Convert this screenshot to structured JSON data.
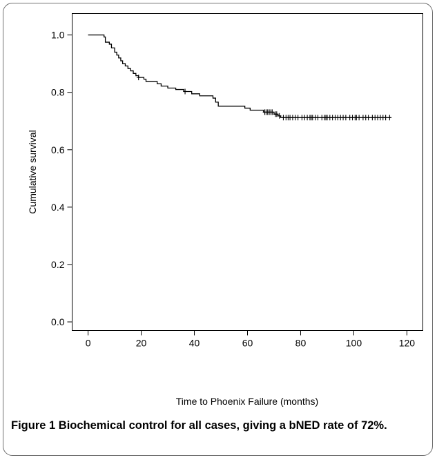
{
  "chart_data": {
    "type": "line",
    "xlabel": "Time to Phoenix Failure (months)",
    "ylabel": "Cumulative survival",
    "xlim": [
      -6,
      126
    ],
    "ylim": [
      -0.03,
      1.075
    ],
    "x_ticks": [
      0,
      20,
      40,
      60,
      80,
      100,
      120
    ],
    "y_ticks": [
      0.0,
      0.2,
      0.4,
      0.6,
      0.8,
      1.0
    ],
    "x_tick_labels": [
      "0",
      "20",
      "40",
      "60",
      "80",
      "100",
      "120"
    ],
    "y_tick_labels": [
      "0.0",
      "0.2",
      "0.4",
      "0.6",
      "0.8",
      "1.0"
    ],
    "grid": false,
    "series": [
      {
        "step": [
          [
            0,
            1.0
          ],
          [
            6,
            0.993
          ],
          [
            6.5,
            0.975
          ],
          [
            8,
            0.968
          ],
          [
            8.8,
            0.955
          ],
          [
            10,
            0.94
          ],
          [
            10.8,
            0.93
          ],
          [
            11.5,
            0.92
          ],
          [
            12.3,
            0.91
          ],
          [
            13,
            0.9
          ],
          [
            14,
            0.892
          ],
          [
            15,
            0.883
          ],
          [
            16,
            0.875
          ],
          [
            17,
            0.866
          ],
          [
            18,
            0.858
          ],
          [
            19,
            0.852
          ],
          [
            21,
            0.846
          ],
          [
            21.8,
            0.838
          ],
          [
            26,
            0.83
          ],
          [
            27.5,
            0.822
          ],
          [
            30,
            0.815
          ],
          [
            33,
            0.81
          ],
          [
            36,
            0.803
          ],
          [
            39,
            0.795
          ],
          [
            42,
            0.788
          ],
          [
            47,
            0.78
          ],
          [
            48,
            0.766
          ],
          [
            49,
            0.752
          ],
          [
            59,
            0.745
          ],
          [
            61,
            0.738
          ],
          [
            66,
            0.731
          ],
          [
            70,
            0.724
          ],
          [
            71.5,
            0.718
          ],
          [
            72.5,
            0.712
          ],
          [
            114,
            0.712
          ]
        ],
        "censored": [
          [
            19,
            0.852
          ],
          [
            36.5,
            0.803
          ],
          [
            66.5,
            0.731
          ],
          [
            67,
            0.731
          ],
          [
            67.6,
            0.731
          ],
          [
            68.2,
            0.731
          ],
          [
            68.8,
            0.731
          ],
          [
            69.3,
            0.731
          ],
          [
            70.5,
            0.724
          ],
          [
            71,
            0.724
          ],
          [
            72,
            0.718
          ],
          [
            73.5,
            0.712
          ],
          [
            74.5,
            0.712
          ],
          [
            75.3,
            0.712
          ],
          [
            76,
            0.712
          ],
          [
            77,
            0.712
          ],
          [
            78,
            0.712
          ],
          [
            79,
            0.712
          ],
          [
            80.5,
            0.712
          ],
          [
            81.5,
            0.712
          ],
          [
            82.5,
            0.712
          ],
          [
            83.5,
            0.712
          ],
          [
            84,
            0.712
          ],
          [
            84.5,
            0.712
          ],
          [
            85.5,
            0.712
          ],
          [
            86.5,
            0.712
          ],
          [
            88,
            0.712
          ],
          [
            89,
            0.712
          ],
          [
            89.5,
            0.712
          ],
          [
            90,
            0.712
          ],
          [
            91,
            0.712
          ],
          [
            92,
            0.712
          ],
          [
            93,
            0.712
          ],
          [
            94,
            0.712
          ],
          [
            95,
            0.712
          ],
          [
            96,
            0.712
          ],
          [
            97,
            0.712
          ],
          [
            98.5,
            0.712
          ],
          [
            99.5,
            0.712
          ],
          [
            100.5,
            0.712
          ],
          [
            101,
            0.712
          ],
          [
            102,
            0.712
          ],
          [
            103.5,
            0.712
          ],
          [
            104.5,
            0.712
          ],
          [
            105.5,
            0.712
          ],
          [
            107,
            0.712
          ],
          [
            108,
            0.712
          ],
          [
            109,
            0.712
          ],
          [
            110,
            0.712
          ],
          [
            111,
            0.712
          ],
          [
            112,
            0.712
          ],
          [
            113.5,
            0.712
          ]
        ]
      }
    ]
  },
  "caption": {
    "label": "Figure 1",
    "text": "Biochemical control for all cases, giving a bNED rate of 72%."
  }
}
